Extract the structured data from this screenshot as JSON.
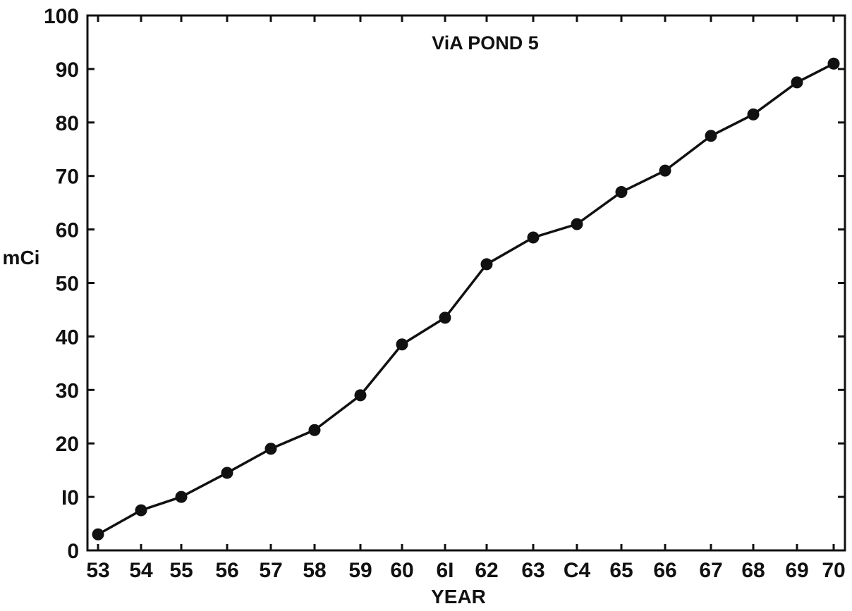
{
  "chart_data": {
    "type": "line",
    "title": "ViA POND 5",
    "xlabel": "YEAR",
    "ylabel": "mCi",
    "x": [
      "53",
      "54",
      "55",
      "56",
      "57",
      "58",
      "59",
      "60",
      "61",
      "62",
      "63",
      "64",
      "65",
      "66",
      "67",
      "68",
      "69",
      "70"
    ],
    "x_tick_labels": [
      "53",
      "54",
      "55",
      "56",
      "57",
      "58",
      "59",
      "60",
      "6I",
      "62",
      "63",
      "C4",
      "65",
      "66",
      "67",
      "68",
      "69",
      "70"
    ],
    "series": [
      {
        "values": [
          3,
          7.5,
          10,
          14.5,
          19,
          22.5,
          29,
          38.5,
          43.5,
          53.5,
          58.5,
          61,
          67,
          71,
          77.5,
          81.5,
          87.5,
          91
        ]
      }
    ],
    "ylim": [
      0,
      100
    ],
    "y_ticks": [
      0,
      10,
      20,
      30,
      40,
      50,
      60,
      70,
      80,
      90,
      100
    ],
    "y_tick_labels": [
      "0",
      "I0",
      "20",
      "30",
      "40",
      "50",
      "60",
      "70",
      "80",
      "90",
      "100"
    ],
    "grid": false,
    "legend": "none",
    "line_color": "#111111",
    "marker_color": "#111111"
  }
}
